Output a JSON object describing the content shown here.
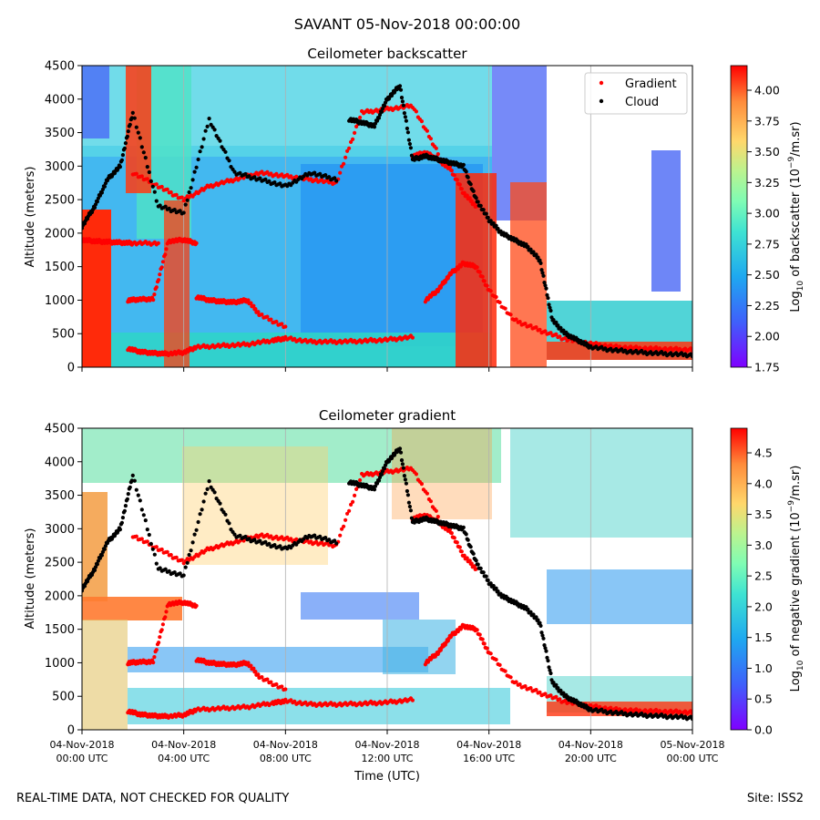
{
  "figure": {
    "suptitle": "SAVANT 05-Nov-2018 00:00:00"
  },
  "footer": {
    "left": "REAL-TIME DATA, NOT CHECKED FOR QUALITY",
    "right": "Site: ISS2"
  },
  "chart_data": [
    {
      "type": "heatmap",
      "title": "Ceilometer backscatter",
      "ylabel": "Altitude (meters)",
      "xlabel": "",
      "ylim": [
        0,
        4500
      ],
      "xlim_hours": [
        0,
        24
      ],
      "yticks": [
        0,
        500,
        1000,
        1500,
        2000,
        2500,
        3000,
        3500,
        4000,
        4500
      ],
      "xtick_hours": [
        0,
        4,
        8,
        12,
        16,
        20,
        24
      ],
      "xtick_labels": [
        [
          "04-Nov-2018",
          "00:00 UTC"
        ],
        [
          "04-Nov-2018",
          "04:00 UTC"
        ],
        [
          "04-Nov-2018",
          "08:00 UTC"
        ],
        [
          "04-Nov-2018",
          "12:00 UTC"
        ],
        [
          "04-Nov-2018",
          "16:00 UTC"
        ],
        [
          "04-Nov-2018",
          "20:00 UTC"
        ],
        [
          "05-Nov-2018",
          "00:00 UTC"
        ]
      ],
      "show_xtick_labels": false,
      "grid": "vertical",
      "colorbar": {
        "label": "Log10 of backscatter (10^-9/m.sr)",
        "range": [
          1.75,
          4.2
        ],
        "ticks": [
          "1.75",
          "2.00",
          "2.25",
          "2.50",
          "2.75",
          "3.00",
          "3.25",
          "3.50",
          "3.75",
          "4.00"
        ]
      },
      "legend": {
        "placement": "top-right",
        "entries": [
          {
            "label": "Gradient",
            "color": "#ff0000"
          },
          {
            "label": "Cloud",
            "color": "#000000"
          }
        ]
      },
      "series": [
        {
          "name": "Gradient",
          "color": "#ff0000",
          "layers": [
            {
              "x": [
                0.0,
                0.5,
                1.0,
                1.5,
                2.0,
                3.0
              ],
              "y": [
                1900,
                1880,
                1870,
                1860,
                1850,
                1850
              ]
            },
            {
              "x": [
                2.0,
                3.0,
                4.0,
                5.0,
                6.0,
                7.0,
                8.0,
                9.0,
                10.0,
                11.0,
                12.0,
                13.0,
                14.0
              ],
              "y": [
                2900,
                2700,
                2500,
                2700,
                2800,
                2900,
                2850,
                2800,
                2750,
                3800,
                3850,
                3900,
                3200
              ]
            },
            {
              "x": [
                1.8,
                2.2,
                2.8,
                3.4,
                4.0,
                4.5
              ],
              "y": [
                1000,
                1010,
                1020,
                1880,
                1900,
                1850
              ]
            },
            {
              "x": [
                4.5,
                5.0,
                5.5,
                6.0,
                6.5,
                7.0,
                8.0
              ],
              "y": [
                1050,
                1000,
                980,
                970,
                1000,
                780,
                600
              ]
            },
            {
              "x": [
                1.8,
                2.3,
                2.8,
                3.3,
                4.0,
                4.5,
                5.5,
                6.5,
                7.5,
                8.0,
                9.0,
                10.0,
                11.0,
                12.0,
                13.0
              ],
              "y": [
                280,
                230,
                210,
                200,
                220,
                300,
                320,
                340,
                400,
                430,
                380,
                380,
                390,
                410,
                450
              ]
            },
            {
              "x": [
                13.5,
                14.0,
                14.5,
                15.0,
                15.5,
                16.0,
                17.0,
                18.0,
                19.0,
                20.0,
                21.0,
                22.0,
                23.0,
                24.0
              ],
              "y": [
                1000,
                1150,
                1400,
                1550,
                1500,
                1150,
                700,
                550,
                420,
                350,
                300,
                280,
                270,
                260
              ]
            },
            {
              "x": [
                13.0,
                13.5,
                14.0,
                14.5,
                15.0,
                15.5
              ],
              "y": [
                3150,
                3200,
                3100,
                2950,
                2600,
                2400
              ]
            }
          ]
        },
        {
          "name": "Cloud",
          "color": "#000000",
          "layers": [
            {
              "x": [
                0.0,
                0.5,
                1.0,
                1.5,
                2.0,
                3.0,
                4.0,
                5.0,
                6.0,
                7.0,
                8.0,
                9.0,
                10.0
              ],
              "y": [
                2100,
                2400,
                2800,
                3000,
                3800,
                2400,
                2300,
                3700,
                2900,
                2800,
                2700,
                2900,
                2800
              ]
            },
            {
              "x": [
                10.5,
                11.0,
                11.5,
                12.0,
                12.5,
                13.0,
                13.5,
                14.0,
                14.5,
                15.0,
                15.5,
                16.0,
                16.5,
                17.0,
                17.5,
                18.0,
                18.5,
                19.0,
                19.5,
                20.0,
                21.0,
                22.0,
                23.0,
                24.0
              ],
              "y": [
                3700,
                3650,
                3600,
                4000,
                4200,
                3100,
                3150,
                3100,
                3050,
                3000,
                2500,
                2200,
                2000,
                1900,
                1800,
                1600,
                700,
                500,
                400,
                300,
                250,
                220,
                200,
                180
              ]
            }
          ]
        }
      ]
    },
    {
      "type": "heatmap",
      "title": "Ceilometer gradient",
      "ylabel": "Altitude (meters)",
      "xlabel": "Time (UTC)",
      "ylim": [
        0,
        4500
      ],
      "xlim_hours": [
        0,
        24
      ],
      "yticks": [
        0,
        500,
        1000,
        1500,
        2000,
        2500,
        3000,
        3500,
        4000,
        4500
      ],
      "xtick_hours": [
        0,
        4,
        8,
        12,
        16,
        20,
        24
      ],
      "xtick_labels": [
        [
          "04-Nov-2018",
          "00:00 UTC"
        ],
        [
          "04-Nov-2018",
          "04:00 UTC"
        ],
        [
          "04-Nov-2018",
          "08:00 UTC"
        ],
        [
          "04-Nov-2018",
          "12:00 UTC"
        ],
        [
          "04-Nov-2018",
          "16:00 UTC"
        ],
        [
          "04-Nov-2018",
          "20:00 UTC"
        ],
        [
          "05-Nov-2018",
          "00:00 UTC"
        ]
      ],
      "show_xtick_labels": true,
      "grid": "vertical",
      "colorbar": {
        "label": "Log10 of negative gradient (10^-9/m.sr)",
        "range": [
          0.0,
          4.9
        ],
        "ticks": [
          "0.0",
          "0.5",
          "1.0",
          "1.5",
          "2.0",
          "2.5",
          "3.0",
          "3.5",
          "4.0",
          "4.5"
        ]
      },
      "series": [
        {
          "name": "Gradient",
          "color": "#ff0000",
          "layers": [
            {
              "x": [
                2.0,
                3.0,
                4.0,
                5.0,
                6.0,
                7.0,
                8.0,
                9.0,
                10.0,
                11.0,
                12.0,
                13.0,
                14.0
              ],
              "y": [
                2900,
                2700,
                2500,
                2700,
                2800,
                2900,
                2850,
                2800,
                2750,
                3800,
                3850,
                3900,
                3200
              ]
            },
            {
              "x": [
                1.8,
                2.2,
                2.8,
                3.4,
                4.0,
                4.5
              ],
              "y": [
                1000,
                1010,
                1020,
                1880,
                1900,
                1850
              ]
            },
            {
              "x": [
                4.5,
                5.0,
                5.5,
                6.0,
                6.5,
                7.0,
                8.0
              ],
              "y": [
                1050,
                1000,
                980,
                970,
                1000,
                780,
                600
              ]
            },
            {
              "x": [
                1.8,
                2.3,
                2.8,
                3.3,
                4.0,
                4.5,
                5.5,
                6.5,
                7.5,
                8.0,
                9.0,
                10.0,
                11.0,
                12.0,
                13.0
              ],
              "y": [
                280,
                230,
                210,
                200,
                220,
                300,
                320,
                340,
                400,
                430,
                380,
                380,
                390,
                410,
                450
              ]
            },
            {
              "x": [
                13.5,
                14.0,
                14.5,
                15.0,
                15.5,
                16.0,
                17.0,
                18.0,
                19.0,
                20.0,
                21.0,
                22.0,
                23.0,
                24.0
              ],
              "y": [
                1000,
                1150,
                1400,
                1550,
                1500,
                1150,
                700,
                550,
                420,
                350,
                300,
                280,
                270,
                260
              ]
            },
            {
              "x": [
                13.0,
                13.5,
                14.0,
                14.5,
                15.0,
                15.5
              ],
              "y": [
                3150,
                3200,
                3100,
                2950,
                2600,
                2400
              ]
            }
          ]
        },
        {
          "name": "Cloud",
          "color": "#000000",
          "layers": [
            {
              "x": [
                0.0,
                0.5,
                1.0,
                1.5,
                2.0,
                3.0,
                4.0,
                5.0,
                6.0,
                7.0,
                8.0,
                9.0,
                10.0
              ],
              "y": [
                2100,
                2400,
                2800,
                3000,
                3800,
                2400,
                2300,
                3700,
                2900,
                2800,
                2700,
                2900,
                2800
              ]
            },
            {
              "x": [
                10.5,
                11.0,
                11.5,
                12.0,
                12.5,
                13.0,
                13.5,
                14.0,
                14.5,
                15.0,
                15.5,
                16.0,
                16.5,
                17.0,
                17.5,
                18.0,
                18.5,
                19.0,
                19.5,
                20.0,
                21.0,
                22.0,
                23.0,
                24.0
              ],
              "y": [
                3700,
                3650,
                3600,
                4000,
                4200,
                3100,
                3150,
                3100,
                3050,
                3000,
                2500,
                2200,
                2000,
                1900,
                1800,
                1600,
                700,
                500,
                400,
                300,
                250,
                220,
                200,
                180
              ]
            }
          ]
        }
      ]
    }
  ]
}
